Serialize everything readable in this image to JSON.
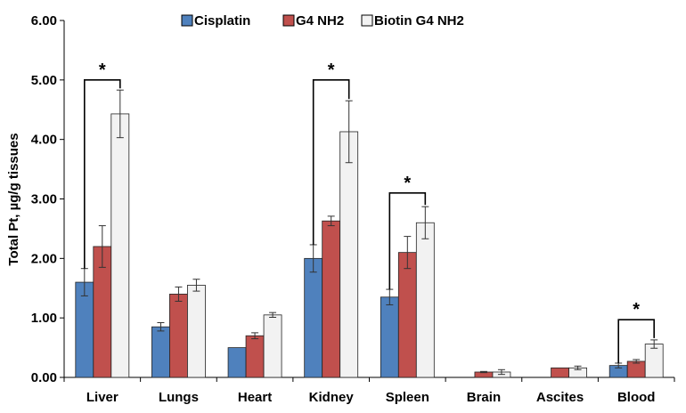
{
  "chart_data": {
    "type": "bar",
    "title": "",
    "xlabel": "",
    "ylabel": "Total Pt, µg/g tissues",
    "ylim": [
      0,
      6
    ],
    "yticks": [
      "0.00",
      "1.00",
      "2.00",
      "3.00",
      "4.00",
      "5.00",
      "6.00"
    ],
    "grid": false,
    "legend_position": "top",
    "categories": [
      "Liver",
      "Lungs",
      "Heart",
      "Kidney",
      "Spleen",
      "Brain",
      "Ascites",
      "Blood"
    ],
    "series": [
      {
        "name": "Cisplatin",
        "color": "#4f81bd",
        "values": [
          1.6,
          0.85,
          0.5,
          2.0,
          1.35,
          0,
          0,
          0.2
        ],
        "errors": [
          0.23,
          0.07,
          0,
          0.23,
          0.13,
          0,
          0,
          0.04
        ]
      },
      {
        "name": "G4 NH2",
        "color": "#c0504d",
        "values": [
          2.2,
          1.4,
          0.7,
          2.63,
          2.1,
          0.09,
          0.16,
          0.27
        ],
        "errors": [
          0.35,
          0.12,
          0.05,
          0.08,
          0.27,
          0.01,
          0,
          0.03
        ]
      },
      {
        "name": "Biotin G4 NH2",
        "color": "#f2f2f2",
        "values": [
          4.43,
          1.55,
          1.05,
          4.13,
          2.6,
          0.09,
          0.16,
          0.56
        ],
        "errors": [
          0.4,
          0.1,
          0.04,
          0.52,
          0.27,
          0.04,
          0.03,
          0.07
        ]
      }
    ],
    "annotations": [
      {
        "text": "*",
        "category": "Liver",
        "from_series": 0,
        "to_series": 2,
        "y": 5.0
      },
      {
        "text": "*",
        "category": "Kidney",
        "from_series": 0,
        "to_series": 2,
        "y": 5.0
      },
      {
        "text": "*",
        "category": "Spleen",
        "from_series": 0,
        "to_series": 2,
        "y": 3.1
      },
      {
        "text": "*",
        "category": "Blood",
        "from_series": 0,
        "to_series": 2,
        "y": 0.97
      }
    ]
  }
}
